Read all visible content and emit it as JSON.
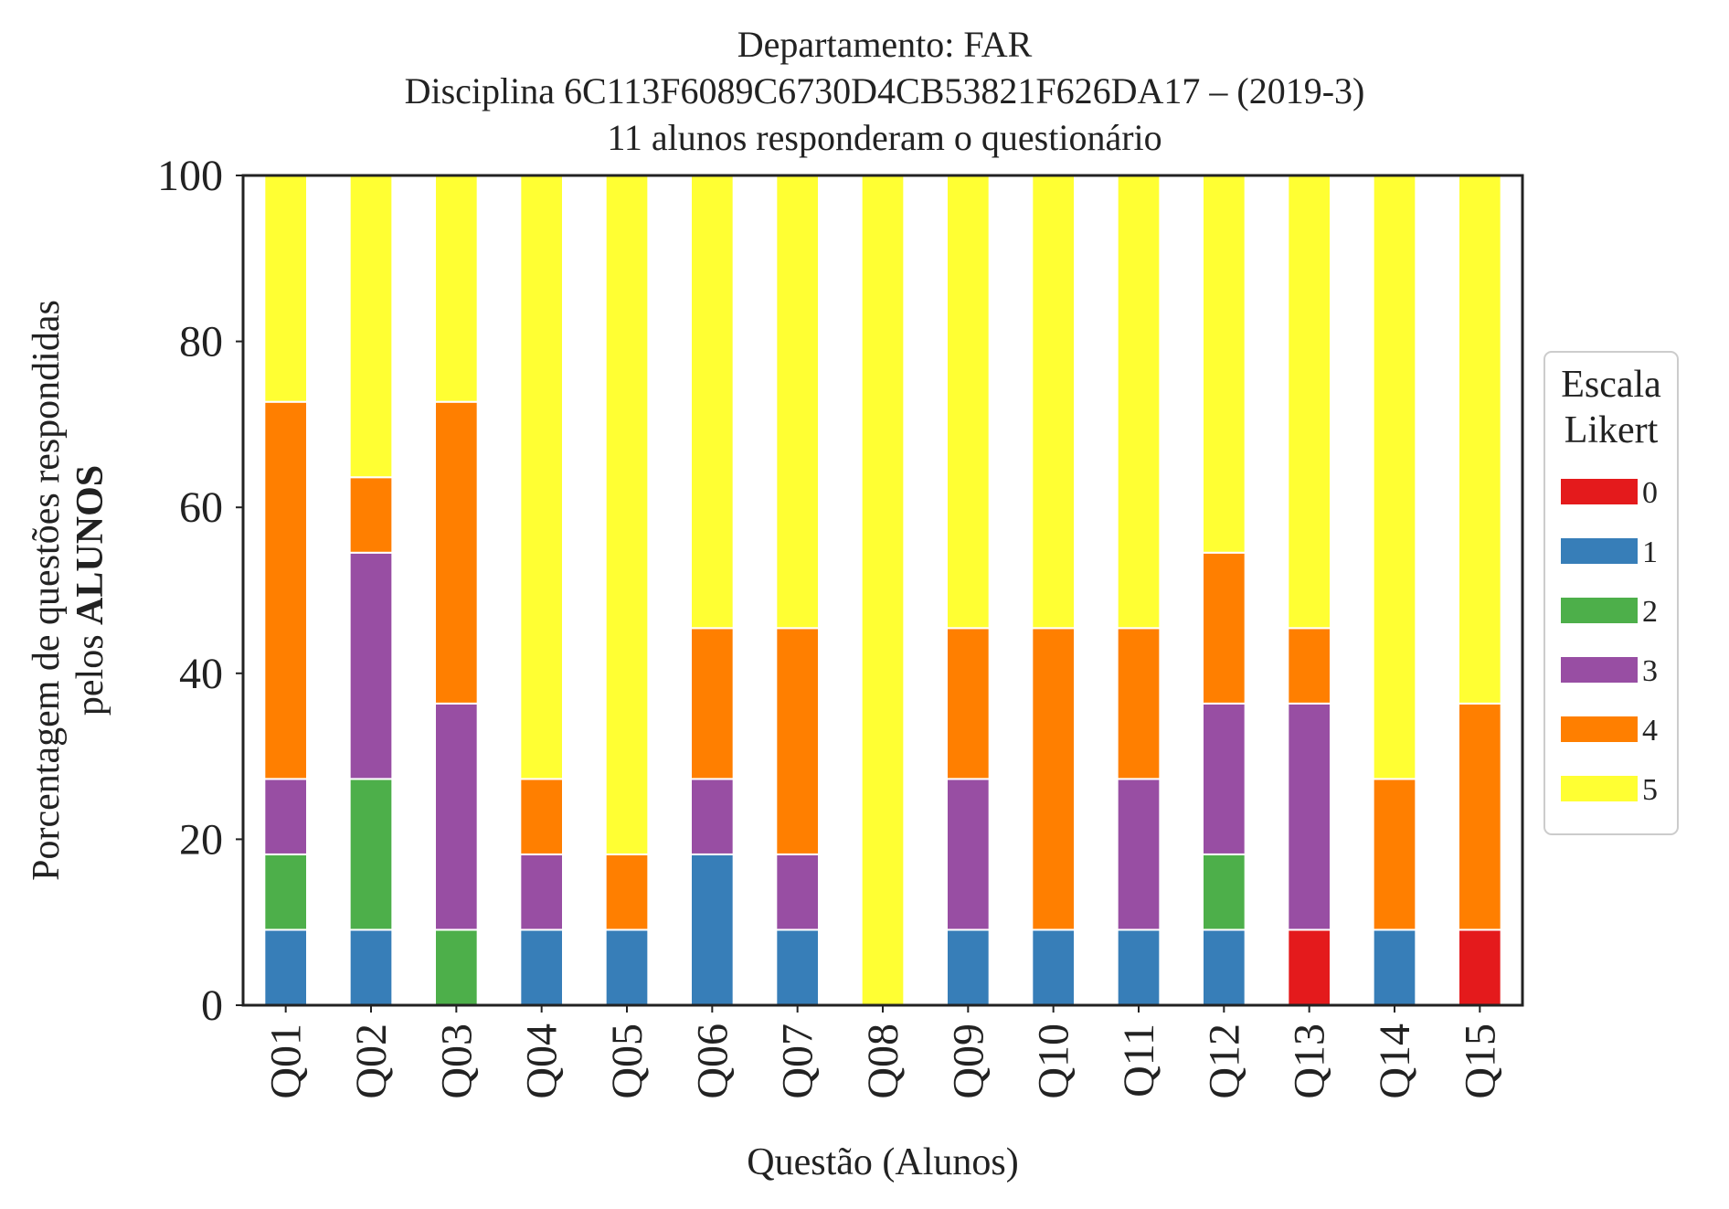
{
  "chart_data": {
    "type": "bar",
    "stacked": true,
    "title_lines": [
      "Departamento: FAR",
      "Disciplina 6C113F6089C6730D4CB53821F626DA17 – (2019-3)",
      "11 alunos responderam o questionário"
    ],
    "ylabel_line1": "Porcentagem de questões respondidas",
    "ylabel_line2_prefix": "pelos ",
    "ylabel_line2_bold": "ALUNOS",
    "xlabel": "Questão (Alunos)",
    "ylim": [
      0,
      100
    ],
    "yticks": [
      "0",
      "20",
      "40",
      "60",
      "80",
      "100"
    ],
    "grid": false,
    "legend": {
      "title_lines": [
        "Escala",
        "Likert"
      ],
      "placement": "center-right-outside"
    },
    "categories": [
      "Q01",
      "Q02",
      "Q03",
      "Q04",
      "Q05",
      "Q06",
      "Q07",
      "Q08",
      "Q09",
      "Q10",
      "Q11",
      "Q12",
      "Q13",
      "Q14",
      "Q15"
    ],
    "series": [
      {
        "name": "0",
        "color": "#e41a1c",
        "values": [
          0,
          0,
          0,
          0,
          0,
          0,
          0,
          0,
          0,
          0,
          0,
          0,
          9.09,
          0,
          9.09
        ]
      },
      {
        "name": "1",
        "color": "#377eb8",
        "values": [
          9.09,
          9.09,
          0,
          9.09,
          9.09,
          18.18,
          9.09,
          0,
          9.09,
          9.09,
          9.09,
          9.09,
          0,
          9.09,
          0
        ]
      },
      {
        "name": "2",
        "color": "#4daf4a",
        "values": [
          9.09,
          18.18,
          9.09,
          0,
          0,
          0,
          0,
          0,
          0,
          0,
          0,
          9.09,
          0,
          0,
          0
        ]
      },
      {
        "name": "3",
        "color": "#984ea3",
        "values": [
          9.09,
          27.27,
          27.27,
          9.09,
          0,
          9.09,
          9.09,
          0,
          18.18,
          0,
          18.18,
          18.18,
          27.27,
          0,
          0
        ]
      },
      {
        "name": "4",
        "color": "#ff7f00",
        "values": [
          45.45,
          9.09,
          36.36,
          9.09,
          9.09,
          18.18,
          27.27,
          0,
          18.18,
          36.36,
          18.18,
          18.18,
          9.09,
          18.18,
          27.27
        ]
      },
      {
        "name": "5",
        "color": "#ffff33",
        "values": [
          27.27,
          36.36,
          27.27,
          72.73,
          81.82,
          54.55,
          54.55,
          100,
          54.55,
          54.55,
          54.55,
          45.45,
          54.55,
          72.73,
          63.64
        ]
      }
    ]
  }
}
